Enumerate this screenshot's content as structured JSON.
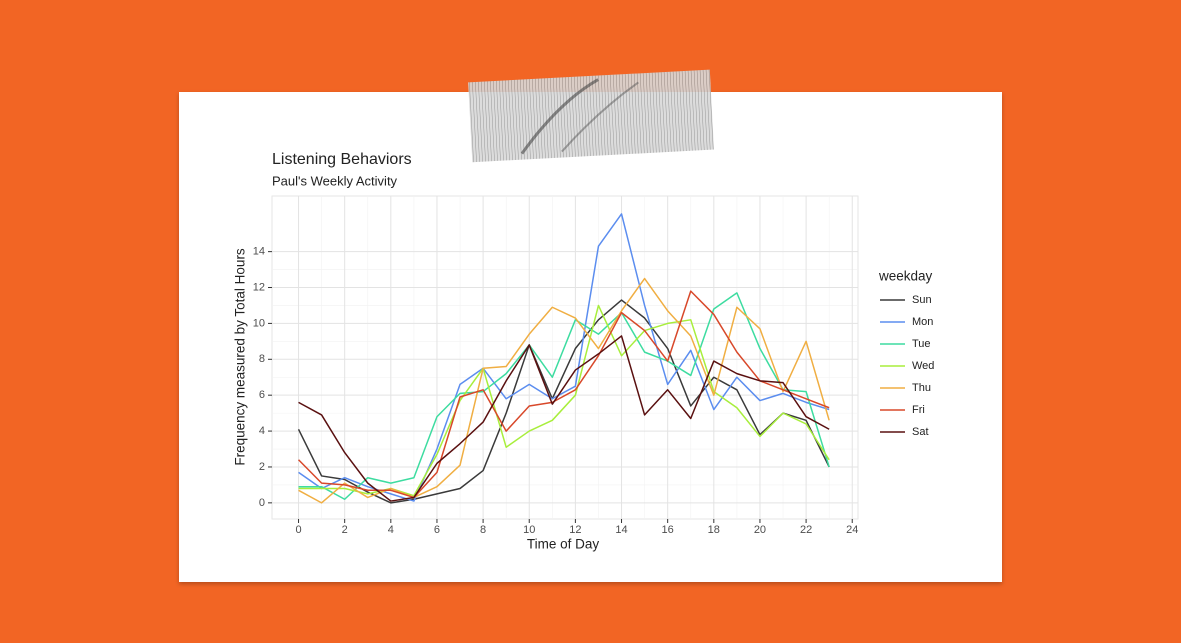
{
  "chart_data": {
    "type": "line",
    "title": "Listening Behaviors",
    "subtitle": "Paul's Weekly Activity",
    "x_label": "Time of Day",
    "y_label": "Frequency measured by Total Hours",
    "legend_title": "weekday",
    "legend_position": "right",
    "grid": true,
    "x": [
      0,
      1,
      2,
      3,
      4,
      5,
      6,
      7,
      8,
      9,
      10,
      11,
      12,
      13,
      14,
      15,
      16,
      17,
      18,
      19,
      20,
      21,
      22,
      23
    ],
    "xlim": [
      -1.15,
      24.25
    ],
    "xticks": [
      0,
      2,
      4,
      6,
      8,
      10,
      12,
      14,
      16,
      18,
      20,
      22,
      24
    ],
    "ylim": [
      -0.9,
      17.1
    ],
    "yticks": [
      0,
      2,
      4,
      6,
      8,
      10,
      12,
      14
    ],
    "series": [
      {
        "name": "Sun",
        "color": "#3a3a3a",
        "values": [
          4.1,
          1.5,
          1.3,
          0.6,
          0.0,
          0.2,
          0.5,
          0.8,
          1.8,
          5.0,
          8.8,
          5.8,
          8.6,
          10.2,
          11.3,
          10.3,
          8.6,
          5.4,
          7.0,
          6.3,
          3.8,
          5.0,
          4.6,
          2.0
        ]
      },
      {
        "name": "Mon",
        "color": "#5b8def",
        "values": [
          1.7,
          0.8,
          1.4,
          0.9,
          0.5,
          0.1,
          3.0,
          6.6,
          7.5,
          5.8,
          6.6,
          5.8,
          6.5,
          14.3,
          16.1,
          11.0,
          6.6,
          8.5,
          5.2,
          7.0,
          5.7,
          6.1,
          5.6,
          5.2
        ]
      },
      {
        "name": "Tue",
        "color": "#3ddca0",
        "values": [
          0.9,
          0.9,
          0.2,
          1.4,
          1.1,
          1.4,
          4.8,
          6.1,
          6.2,
          7.2,
          8.8,
          7.0,
          10.2,
          9.4,
          10.6,
          8.4,
          7.9,
          7.1,
          10.8,
          11.7,
          8.6,
          6.3,
          6.2,
          2.0
        ]
      },
      {
        "name": "Wed",
        "color": "#a8ee3c",
        "values": [
          0.8,
          0.8,
          0.8,
          0.5,
          0.8,
          0.4,
          2.7,
          5.7,
          7.5,
          3.1,
          4.0,
          4.6,
          6.0,
          11.0,
          8.2,
          9.6,
          10.0,
          10.2,
          6.2,
          5.3,
          3.7,
          5.0,
          4.4,
          2.4
        ]
      },
      {
        "name": "Thu",
        "color": "#f0ae42",
        "values": [
          0.7,
          0.0,
          1.1,
          0.3,
          0.8,
          0.3,
          0.9,
          2.1,
          7.5,
          7.6,
          9.4,
          10.9,
          10.3,
          8.6,
          10.7,
          12.5,
          10.7,
          9.3,
          6.0,
          10.9,
          9.7,
          6.2,
          9.0,
          4.6
        ]
      },
      {
        "name": "Fri",
        "color": "#d8482a",
        "values": [
          2.4,
          1.1,
          1.0,
          0.7,
          0.7,
          0.3,
          1.7,
          5.9,
          6.3,
          4.0,
          5.4,
          5.6,
          6.3,
          8.2,
          10.6,
          9.6,
          7.9,
          11.8,
          10.5,
          8.4,
          6.8,
          6.3,
          5.8,
          5.3
        ]
      },
      {
        "name": "Sat",
        "color": "#5a1010",
        "values": [
          5.6,
          4.9,
          2.8,
          1.1,
          0.1,
          0.3,
          2.2,
          3.3,
          4.5,
          6.8,
          8.8,
          5.5,
          7.4,
          8.3,
          9.3,
          4.9,
          6.3,
          4.7,
          7.9,
          7.2,
          6.8,
          6.7,
          4.8,
          4.1
        ]
      }
    ]
  }
}
